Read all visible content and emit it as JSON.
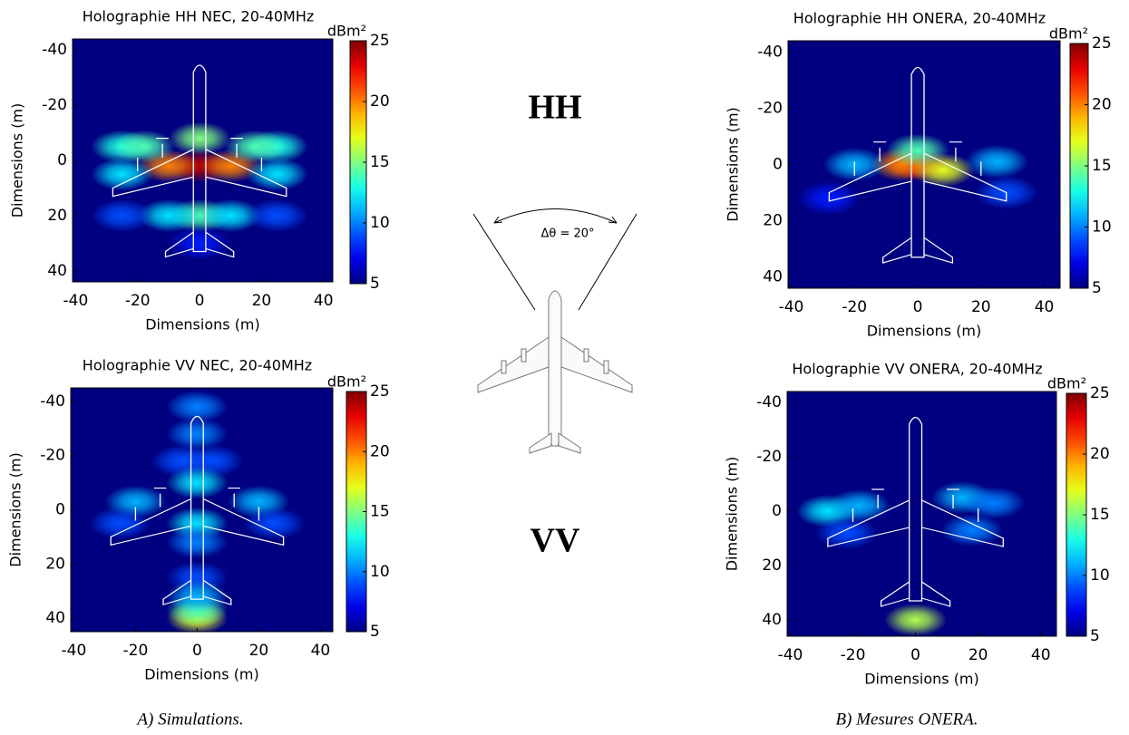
{
  "chart_data": [
    {
      "type": "heatmap",
      "title": "Holographie HH NEC, 20-40MHz",
      "xlabel": "Dimensions (m)",
      "ylabel": "Dimensions (m)",
      "xlim": [
        -41,
        43
      ],
      "ylim": [
        44,
        -44
      ],
      "xticks": [
        -40,
        -20,
        0,
        20,
        40
      ],
      "yticks": [
        -40,
        -20,
        0,
        20,
        40
      ],
      "colorbar": {
        "label": "dBm²",
        "lim": [
          5,
          25
        ],
        "ticks": [
          5,
          10,
          15,
          20,
          25
        ]
      },
      "x": [
        0,
        -10,
        10,
        -25,
        25,
        -25,
        25,
        -18,
        18,
        0,
        -10,
        10,
        -25,
        25,
        0,
        0
      ],
      "y": [
        2,
        2,
        2,
        -5,
        -5,
        5,
        5,
        -5,
        -5,
        20,
        20,
        20,
        20,
        20,
        -8,
        30
      ],
      "values": [
        24,
        20,
        20,
        13,
        13,
        12,
        12,
        14,
        14,
        14,
        12,
        12,
        9,
        9,
        15,
        8
      ]
    },
    {
      "type": "heatmap",
      "title": "Holographie HH ONERA, 20-40MHz",
      "xlabel": "Dimensions (m)",
      "ylabel": "Dimensions (m)",
      "xlim": [
        -41,
        45
      ],
      "ylim": [
        44,
        -44
      ],
      "xticks": [
        -40,
        -20,
        0,
        20,
        40
      ],
      "yticks": [
        -40,
        -20,
        0,
        20,
        40
      ],
      "colorbar": {
        "label": "dBm²",
        "lim": [
          5,
          25
        ],
        "ticks": [
          5,
          10,
          15,
          20,
          25
        ]
      },
      "x": [
        0,
        -5,
        8,
        0,
        25,
        -20,
        28,
        -28
      ],
      "y": [
        0,
        0,
        2,
        -5,
        -1,
        0,
        10,
        12
      ],
      "values": [
        23,
        20,
        17,
        14,
        11,
        11,
        9,
        8
      ]
    },
    {
      "type": "heatmap",
      "title": "Holographie VV NEC, 20-40MHz",
      "xlabel": "Dimensions (m)",
      "ylabel": "Dimensions (m)",
      "xlim": [
        -41,
        44
      ],
      "ylim": [
        45,
        -45
      ],
      "xticks": [
        -40,
        -20,
        0,
        20,
        40
      ],
      "yticks": [
        -40,
        -20,
        0,
        20,
        40
      ],
      "colorbar": {
        "label": "dBm²",
        "lim": [
          5,
          25
        ],
        "ticks": [
          5,
          10,
          15,
          20,
          25
        ]
      },
      "x": [
        0,
        0,
        0,
        0,
        -5,
        5,
        0,
        -20,
        20,
        -25,
        25,
        0,
        0,
        0,
        0
      ],
      "y": [
        40,
        37,
        -38,
        -28,
        -18,
        -18,
        -10,
        -3,
        -3,
        5,
        5,
        5,
        12,
        25,
        32
      ],
      "values": [
        17,
        14,
        10,
        10,
        9,
        9,
        12,
        11,
        11,
        9,
        9,
        12,
        10,
        9,
        11
      ]
    },
    {
      "type": "heatmap",
      "title": "Holographie VV ONERA, 20-40MHz",
      "xlabel": "Dimensions (m)",
      "ylabel": "Dimensions (m)",
      "xlim": [
        -41,
        45
      ],
      "ylim": [
        46,
        -44
      ],
      "xticks": [
        -40,
        -20,
        0,
        20,
        40
      ],
      "yticks": [
        -40,
        -20,
        0,
        20,
        40
      ],
      "colorbar": {
        "label": "dBm²",
        "lim": [
          5,
          25
        ],
        "ticks": [
          5,
          10,
          15,
          20,
          25
        ]
      },
      "x": [
        0,
        -28,
        -18,
        15,
        25,
        18,
        -22
      ],
      "y": [
        40,
        0,
        -2,
        -5,
        -3,
        7,
        8
      ],
      "values": [
        16,
        12,
        11,
        11,
        10,
        10,
        9
      ]
    }
  ],
  "center": {
    "hh": "HH",
    "vv": "VV",
    "angle": "Δθ = 20°"
  },
  "captions": [
    "A) Simulations.",
    "B) Mesures ONERA."
  ]
}
